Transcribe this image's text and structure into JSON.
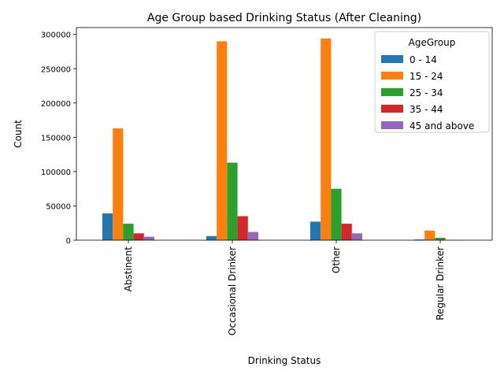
{
  "chart_data": {
    "type": "bar",
    "title": "Age Group based Drinking Status (After Cleaning)",
    "xlabel": "Drinking Status",
    "ylabel": "Count",
    "ylim": [
      0,
      310000
    ],
    "yticks": [
      0,
      50000,
      100000,
      150000,
      200000,
      250000,
      300000
    ],
    "categories": [
      "Abstinent",
      "Occasional Drinker",
      "Other",
      "Regular Drinker"
    ],
    "legend_title": "AgeGroup",
    "legend_position": "top-right",
    "grid": false,
    "series": [
      {
        "name": "0 - 14",
        "color": "#1f77b4",
        "values": [
          39000,
          6000,
          27000,
          1000
        ]
      },
      {
        "name": "15 - 24",
        "color": "#ff7f0e",
        "values": [
          163000,
          290000,
          294000,
          14000
        ]
      },
      {
        "name": "25 - 34",
        "color": "#2ca02c",
        "values": [
          24000,
          113000,
          75000,
          3500
        ]
      },
      {
        "name": "35 - 44",
        "color": "#d62728",
        "values": [
          10000,
          35000,
          24000,
          300
        ]
      },
      {
        "name": "45 and above",
        "color": "#9467bd",
        "values": [
          5000,
          12000,
          10000,
          100
        ]
      }
    ]
  }
}
